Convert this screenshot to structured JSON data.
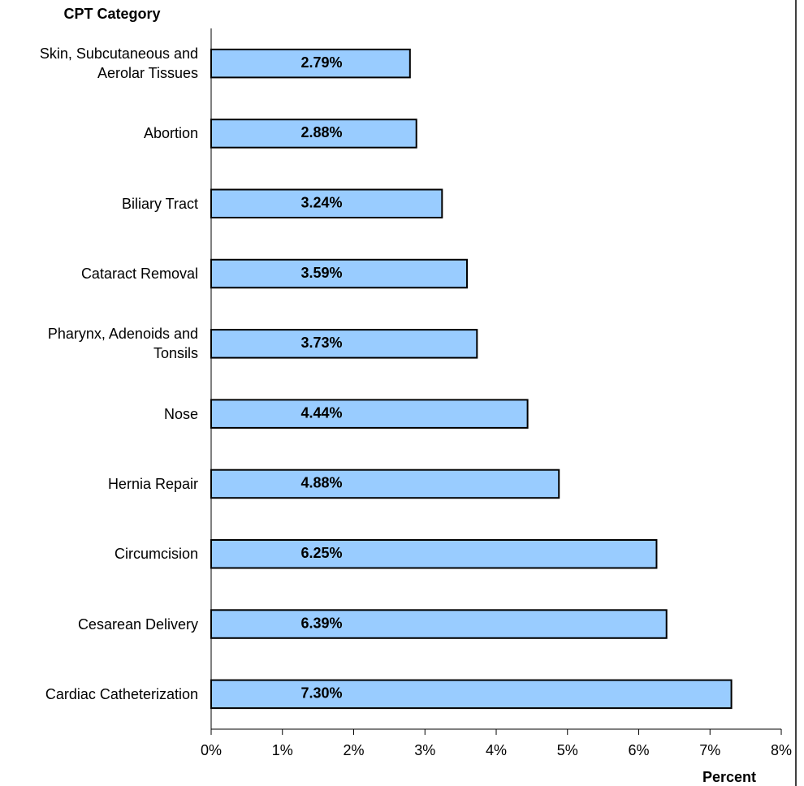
{
  "chart_data": {
    "type": "bar",
    "orientation": "horizontal",
    "y_axis_title": "CPT Category",
    "x_axis_title": "Percent",
    "categories": [
      "Skin, Subcutaneous and Aerolar Tissues",
      "Abortion",
      "Biliary Tract",
      "Cataract Removal",
      "Pharynx, Adenoids and Tonsils",
      "Nose",
      "Hernia Repair",
      "Circumcision",
      "Cesarean Delivery",
      "Cardiac Catheterization"
    ],
    "values": [
      2.79,
      2.88,
      3.24,
      3.59,
      3.73,
      4.44,
      4.88,
      6.25,
      6.39,
      7.3
    ],
    "value_labels": [
      "2.79%",
      "2.88%",
      "3.24%",
      "3.59%",
      "3.73%",
      "4.44%",
      "4.88%",
      "6.25%",
      "6.39%",
      "7.30%"
    ],
    "color": "#99ccff",
    "xlim": [
      0,
      8
    ],
    "xticks": [
      {
        "value": 0,
        "label": "0%"
      },
      {
        "value": 1,
        "label": "1%"
      },
      {
        "value": 2,
        "label": "2%"
      },
      {
        "value": 3,
        "label": "3%"
      },
      {
        "value": 4,
        "label": "4%"
      },
      {
        "value": 5,
        "label": "5%"
      },
      {
        "value": 6,
        "label": "6%"
      },
      {
        "value": 7,
        "label": "7%"
      },
      {
        "value": 8,
        "label": "8%"
      }
    ],
    "grid": false
  }
}
